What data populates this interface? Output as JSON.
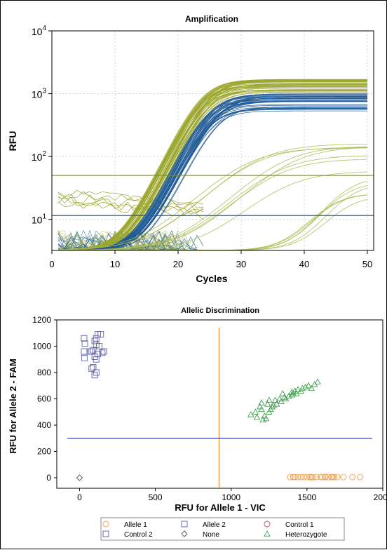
{
  "chart_data": [
    {
      "type": "line",
      "title": "Amplification",
      "xlabel": "Cycles",
      "ylabel": "RFU",
      "xlim": [
        0,
        51
      ],
      "ylim": [
        3.2,
        10000
      ],
      "yscale": "log",
      "xticks": [
        "0",
        "10",
        "20",
        "30",
        "40",
        "50"
      ],
      "ytick_base": "10",
      "ytick_exps": [
        "1",
        "2",
        "3",
        "4"
      ],
      "grid": true,
      "thresholds": [
        {
          "value": 50,
          "color": "#7a8a2a"
        },
        {
          "value": 11.5,
          "color": "#2a5aa0"
        }
      ],
      "series_groups": [
        {
          "color": "#9aa52a",
          "count": 40,
          "plateau_range": [
            1050,
            1700
          ],
          "midpoint_range": [
            23.5,
            25.5
          ],
          "slope": 2.1
        },
        {
          "color": "#1f5a96",
          "count": 40,
          "plateau_range": [
            520,
            1000
          ],
          "midpoint_range": [
            24.5,
            26.5
          ],
          "slope": 2.1
        },
        {
          "color": "#aab84a",
          "count": 8,
          "plateau_range": [
            45,
            170
          ],
          "midpoint_range": [
            30,
            38
          ],
          "slope": 4.0
        },
        {
          "color": "#aab84a",
          "count": 6,
          "plateau_range": [
            20,
            45
          ],
          "midpoint_range": [
            42,
            48
          ],
          "slope": 2.5
        }
      ]
    },
    {
      "type": "scatter",
      "title": "Allelic Discrimination",
      "xlabel": "RFU for Allele 1 - VIC",
      "ylabel": "RFU for Allele 2 - FAM",
      "xlim": [
        -150,
        2000
      ],
      "ylim": [
        -80,
        1200
      ],
      "xticks": [
        "0",
        "500",
        "1000",
        "1500",
        "2000"
      ],
      "yticks": [
        "0",
        "200",
        "400",
        "600",
        "800",
        "1000",
        "1200"
      ],
      "grid": false,
      "thresholds": {
        "x": 920,
        "y": 300,
        "x_color": "#e89030",
        "y_color": "#3a3aa0"
      },
      "series": [
        {
          "name": "Allele 1",
          "marker": "circle",
          "color": "#f0a050",
          "points": [
            [
              1390,
              5
            ],
            [
              1410,
              5
            ],
            [
              1420,
              5
            ],
            [
              1440,
              5
            ],
            [
              1460,
              5
            ],
            [
              1480,
              5
            ],
            [
              1500,
              5
            ],
            [
              1520,
              5
            ],
            [
              1530,
              5
            ],
            [
              1560,
              5
            ],
            [
              1590,
              5
            ],
            [
              1600,
              5
            ],
            [
              1620,
              5
            ],
            [
              1640,
              5
            ],
            [
              1660,
              5
            ],
            [
              1670,
              5
            ],
            [
              1680,
              5
            ],
            [
              1700,
              5
            ],
            [
              1740,
              5
            ],
            [
              1800,
              5
            ],
            [
              1850,
              5
            ],
            [
              1620,
              8
            ],
            [
              1540,
              3
            ]
          ]
        },
        {
          "name": "Allele 2",
          "marker": "square",
          "color": "#5a60a8",
          "points": [
            [
              30,
              1060
            ],
            [
              35,
              1020
            ],
            [
              30,
              960
            ],
            [
              32,
              910
            ],
            [
              80,
              960
            ],
            [
              90,
              970
            ],
            [
              100,
              1040
            ],
            [
              110,
              1060
            ],
            [
              120,
              1090
            ],
            [
              140,
              1090
            ],
            [
              110,
              1010
            ],
            [
              130,
              1000
            ],
            [
              150,
              950
            ],
            [
              160,
              960
            ],
            [
              120,
              940
            ],
            [
              110,
              900
            ],
            [
              100,
              920
            ],
            [
              90,
              840
            ],
            [
              80,
              830
            ],
            [
              110,
              800
            ],
            [
              100,
              780
            ],
            [
              70,
              960
            ]
          ]
        },
        {
          "name": "Control 1",
          "marker": "circle",
          "color": "#b05070",
          "points": []
        },
        {
          "name": "Control 2",
          "marker": "square",
          "color": "#5a5ab0",
          "points": []
        },
        {
          "name": "None",
          "marker": "diamond",
          "color": "#555555",
          "points": [
            [
              0,
              0
            ]
          ]
        },
        {
          "name": "Heterozygote",
          "marker": "triangle",
          "color": "#40a050",
          "points": [
            [
              1130,
              480
            ],
            [
              1160,
              500
            ],
            [
              1170,
              460
            ],
            [
              1190,
              540
            ],
            [
              1200,
              520
            ],
            [
              1210,
              440
            ],
            [
              1220,
              470
            ],
            [
              1230,
              450
            ],
            [
              1240,
              560
            ],
            [
              1250,
              500
            ],
            [
              1260,
              520
            ],
            [
              1270,
              540
            ],
            [
              1280,
              550
            ],
            [
              1290,
              590
            ],
            [
              1300,
              560
            ],
            [
              1320,
              600
            ],
            [
              1330,
              580
            ],
            [
              1350,
              610
            ],
            [
              1360,
              600
            ],
            [
              1380,
              620
            ],
            [
              1400,
              630
            ],
            [
              1400,
              650
            ],
            [
              1410,
              640
            ],
            [
              1420,
              660
            ],
            [
              1430,
              640
            ],
            [
              1440,
              670
            ],
            [
              1460,
              660
            ],
            [
              1470,
              680
            ],
            [
              1490,
              690
            ],
            [
              1510,
              700
            ],
            [
              1530,
              680
            ],
            [
              1550,
              710
            ],
            [
              1570,
              730
            ],
            [
              1200,
              570
            ],
            [
              1250,
              590
            ],
            [
              1340,
              640
            ]
          ]
        }
      ],
      "legend": {
        "placement": "bottom",
        "columns": 3
      }
    }
  ]
}
